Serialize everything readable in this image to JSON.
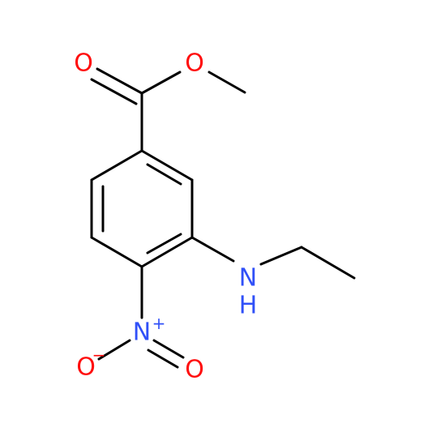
{
  "atoms": [
    {
      "label": "O"
    },
    {
      "label": "O"
    },
    {
      "label": "N"
    },
    {
      "label": "H"
    },
    {
      "label": "N"
    },
    {
      "label": "+"
    },
    {
      "label": "O"
    },
    {
      "label": "−"
    },
    {
      "label": "O"
    }
  ]
}
